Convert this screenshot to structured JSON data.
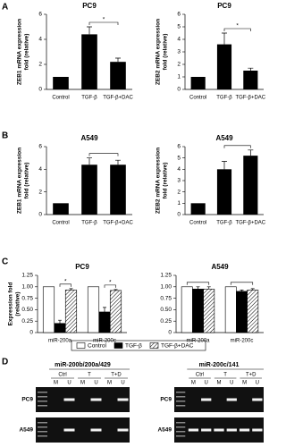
{
  "panel_labels": [
    "A",
    "B",
    "C",
    "D"
  ],
  "chart_data": [
    {
      "type": "bar",
      "title": "PC9",
      "ylabel": [
        "ZEB1 mRNA expression",
        "fold (relative)"
      ],
      "categories": [
        "Control",
        "TGF-β",
        "TGF-β+DAC"
      ],
      "values": [
        1,
        4.4,
        2.2
      ],
      "errors": [
        null,
        0.6,
        0.3
      ],
      "color": "#000000",
      "ylim": [
        0,
        6
      ],
      "yticks": [
        0,
        2,
        4,
        6
      ],
      "brackets": [
        {
          "between": [
            1,
            2
          ],
          "label": "*"
        }
      ]
    },
    {
      "type": "bar",
      "title": "PC9",
      "ylabel": [
        "ZEB2 mRNA expression",
        "fold (relative)"
      ],
      "categories": [
        "Control",
        "TGF-β",
        "TGF-β+DAC"
      ],
      "values": [
        1,
        3.6,
        1.5
      ],
      "errors": [
        null,
        0.9,
        0.2
      ],
      "color": "#000000",
      "ylim": [
        0,
        6
      ],
      "yticks": [
        0,
        1,
        2,
        3,
        4,
        5,
        6
      ],
      "brackets": [
        {
          "between": [
            1,
            2
          ],
          "label": "*"
        }
      ]
    },
    {
      "type": "bar",
      "title": "A549",
      "ylabel": [
        "ZEB1 mRNA expression",
        "fold (relative)"
      ],
      "categories": [
        "Control",
        "TGF-β",
        "TGF-β+DAC"
      ],
      "values": [
        1,
        4.4,
        4.4
      ],
      "errors": [
        null,
        0.6,
        0.4
      ],
      "color": "#000000",
      "ylim": [
        0,
        6
      ],
      "yticks": [
        0,
        2,
        4,
        6
      ],
      "brackets": [
        {
          "between": [
            1,
            2
          ]
        }
      ]
    },
    {
      "type": "bar",
      "title": "A549",
      "ylabel": [
        "ZEB2 mRNA expression",
        "fold (relative)"
      ],
      "categories": [
        "Control",
        "TGF-β",
        "TGF-β+DAC"
      ],
      "values": [
        1,
        4.0,
        5.2
      ],
      "errors": [
        null,
        0.7,
        0.5
      ],
      "color": "#000000",
      "ylim": [
        0,
        6
      ],
      "yticks": [
        0,
        1,
        2,
        3,
        4,
        5,
        6
      ],
      "brackets": [
        {
          "between": [
            1,
            2
          ]
        }
      ]
    },
    {
      "type": "grouped_bar",
      "title": "PC9",
      "ylabel": [
        "Expression fold",
        "(relative)"
      ],
      "categories": [
        "miR-200a",
        "miR-200c"
      ],
      "series": [
        {
          "name": "Control",
          "color": "#ffffff",
          "values": [
            1,
            1
          ],
          "errors": [
            null,
            null
          ]
        },
        {
          "name": "TGF-β",
          "color": "#000000",
          "values": [
            0.2,
            0.45
          ],
          "errors": [
            0.07,
            0.1
          ]
        },
        {
          "name": "TGF-β+DAC",
          "color": "#ffffff",
          "hatch": true,
          "values": [
            0.93,
            0.92
          ],
          "errors": [
            0.03,
            0.02
          ]
        }
      ],
      "ylim": [
        0,
        1.25
      ],
      "yticks": [
        0,
        {
          "value": 0.25,
          "label": "0.25"
        },
        {
          "value": 0.5,
          "label": "0.50"
        },
        {
          "value": 0.75,
          "label": "0.75"
        },
        {
          "value": 1,
          "label": "1.00"
        },
        {
          "value": 1.25,
          "label": "1.25"
        }
      ],
      "brackets": [
        {
          "category": 0,
          "series": [
            1,
            2
          ],
          "label": "*"
        },
        {
          "category": 1,
          "series": [
            1,
            2
          ],
          "label": "*"
        }
      ]
    },
    {
      "type": "grouped_bar",
      "title": "A549",
      "categories": [
        "miR-200a",
        "miR-200c"
      ],
      "series": [
        {
          "name": "Control",
          "color": "#ffffff",
          "values": [
            1,
            1
          ],
          "errors": [
            null,
            null
          ]
        },
        {
          "name": "TGF-β",
          "color": "#000000",
          "values": [
            0.95,
            0.9
          ],
          "errors": [
            0.05,
            0.03
          ]
        },
        {
          "name": "TGF-β+DAC",
          "color": "#ffffff",
          "hatch": true,
          "values": [
            0.95,
            0.93
          ],
          "errors": [
            0.05,
            0.03
          ]
        }
      ],
      "ylim": [
        0,
        1.25
      ],
      "yticks": [
        0,
        {
          "value": 0.25,
          "label": "0.25"
        },
        {
          "value": 0.5,
          "label": "0.50"
        },
        {
          "value": 0.75,
          "label": "0.75"
        },
        {
          "value": 1,
          "label": "1.00"
        },
        {
          "value": 1.25,
          "label": "1.25"
        }
      ],
      "brackets": [
        {
          "category": 0,
          "series": [
            0,
            2
          ]
        },
        {
          "category": 1,
          "series": [
            0,
            2
          ]
        }
      ]
    }
  ],
  "gels": [
    {
      "title": "miR-200b/200a/429",
      "groups": [
        "Ctrl",
        "T",
        "T+D"
      ],
      "lanes": [
        "M",
        "U",
        "M",
        "U",
        "M",
        "U"
      ],
      "rows": [
        "PC9",
        "A549"
      ]
    },
    {
      "title": "miR-200c/141",
      "groups": [
        "Ctrl",
        "T",
        "T+D"
      ],
      "lanes": [
        "M",
        "U",
        "M",
        "U",
        "M",
        "U"
      ],
      "rows": [
        "PC9",
        "A549"
      ]
    }
  ]
}
